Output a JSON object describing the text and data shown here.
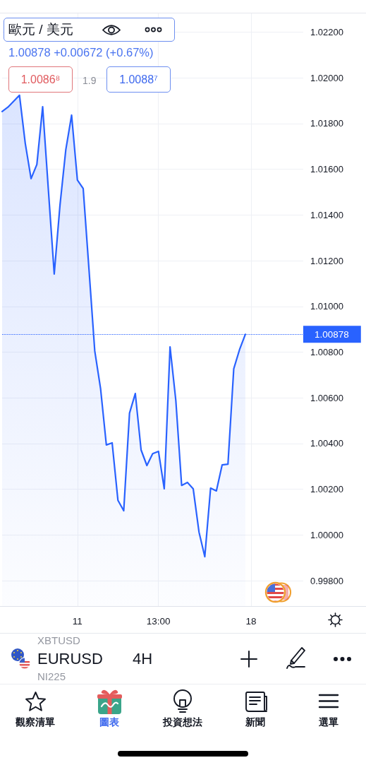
{
  "chart_data": {
    "type": "area",
    "title": "歐元 / 美元",
    "subtitle": "1.00878 +0.00672 (+0.67%)",
    "categories": [
      null,
      null,
      null,
      null,
      null,
      null,
      null,
      null,
      null,
      null,
      null,
      null,
      null,
      "11",
      null,
      null,
      null,
      null,
      null,
      null,
      null,
      null,
      null,
      null,
      null,
      null,
      null,
      "13:00",
      null,
      null,
      null,
      null,
      null,
      null,
      null,
      null,
      null,
      null,
      null,
      null,
      null,
      null,
      null,
      "18",
      null,
      null,
      null,
      null,
      null,
      null,
      null,
      null,
      null
    ],
    "values": [
      1.01853,
      1.01872,
      null,
      1.01924,
      1.01713,
      1.01559,
      1.01621,
      1.01874,
      1.01506,
      1.01142,
      1.01445,
      1.01686,
      1.01837,
      1.01553,
      1.01516,
      1.01163,
      1.00805,
      1.00641,
      1.00394,
      1.00403,
      1.00152,
      1.00106,
      1.00533,
      1.00619,
      1.00372,
      1.00304,
      1.00356,
      1.00366,
      1.00202,
      1.00823,
      1.00588,
      1.00217,
      1.0023,
      1.00202,
      1.00013,
      0.99905,
      1.00205,
      1.00193,
      1.00307,
      1.0031,
      1.00727,
      1.00811,
      1.00878,
      null,
      null,
      null,
      null,
      null,
      null,
      null,
      null,
      null,
      null
    ],
    "color": "#2962ff",
    "ylim": [
      0.99689,
      1.02282
    ],
    "yticks": [
      {
        "value": 0.998,
        "label": "0.99800"
      },
      {
        "value": 1.0,
        "label": "1.00000"
      },
      {
        "value": 1.002,
        "label": "1.00200"
      },
      {
        "value": 1.004,
        "label": "1.00400"
      },
      {
        "value": 1.006,
        "label": "1.00600"
      },
      {
        "value": 1.008,
        "label": "1.00800"
      },
      {
        "value": 1.01,
        "label": "1.01000"
      },
      {
        "value": 1.012,
        "label": "1.01200"
      },
      {
        "value": 1.014,
        "label": "1.01400"
      },
      {
        "value": 1.016,
        "label": "1.01600"
      },
      {
        "value": 1.018,
        "label": "1.01800"
      },
      {
        "value": 1.02,
        "label": "1.02000"
      },
      {
        "value": 1.022,
        "label": "1.02200"
      }
    ],
    "grid": true,
    "ref_lines": [
      {
        "axis": "y",
        "value": 1.00878,
        "label": "1.00878",
        "color": "#2962ff",
        "line_style": "dotted"
      }
    ],
    "annotations": [
      "1.0086⁸",
      "1.9",
      "1.0088⁷",
      "XBTUSD",
      "EURUSD",
      "NI225",
      "4H",
      "觀察清單",
      "圖表",
      "投資想法",
      "新聞",
      "選單"
    ]
  }
}
